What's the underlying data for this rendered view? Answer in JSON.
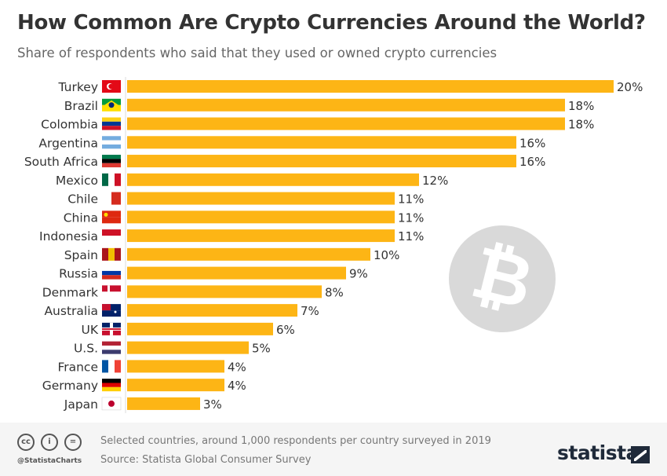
{
  "title": "How Common Are Crypto Currencies Around the World?",
  "subtitle": "Share of respondents who said that they used or owned crypto currencies",
  "chart_data": {
    "type": "bar",
    "orientation": "horizontal",
    "categories": [
      "Turkey",
      "Brazil",
      "Colombia",
      "Argentina",
      "South Africa",
      "Mexico",
      "Chile",
      "China",
      "Indonesia",
      "Spain",
      "Russia",
      "Denmark",
      "Australia",
      "UK",
      "U.S.",
      "France",
      "Germany",
      "Japan"
    ],
    "values": [
      20,
      18,
      18,
      16,
      16,
      12,
      11,
      11,
      11,
      10,
      9,
      8,
      7,
      6,
      5,
      4,
      4,
      3
    ],
    "data_labels": [
      "20%",
      "18%",
      "18%",
      "16%",
      "16%",
      "12%",
      "11%",
      "11%",
      "11%",
      "10%",
      "9%",
      "8%",
      "7%",
      "6%",
      "5%",
      "4%",
      "4%",
      "3%"
    ],
    "unit": "%",
    "xlim": [
      0,
      20
    ],
    "bar_color": "#fdb515",
    "grid": false,
    "title": "How Common Are Crypto Currencies Around the World?",
    "subtitle": "Share of respondents who said that they used or owned crypto currencies"
  },
  "flags": [
    [
      "#e30a17",
      "#e30a17"
    ],
    [
      "#009c3b",
      "#ffdf00"
    ],
    [
      "#fcd116",
      "#003893",
      "#ce1126"
    ],
    [
      "#74acdf",
      "#ffffff",
      "#74acdf"
    ],
    [
      "#007a4d",
      "#000000",
      "#de3831"
    ],
    [
      "#006847",
      "#ffffff",
      "#ce1126"
    ],
    [
      "#ffffff",
      "#d52b1e"
    ],
    [
      "#de2910",
      "#de2910"
    ],
    [
      "#ce1126",
      "#ffffff"
    ],
    [
      "#aa151b",
      "#f1bf00",
      "#aa151b"
    ],
    [
      "#ffffff",
      "#0039a6",
      "#d52b1e"
    ],
    [
      "#c8102e",
      "#ffffff"
    ],
    [
      "#012169",
      "#012169"
    ],
    [
      "#012169",
      "#c8102e"
    ],
    [
      "#b22234",
      "#ffffff",
      "#3c3b6e"
    ],
    [
      "#0055a4",
      "#ffffff",
      "#ef4135"
    ],
    [
      "#000000",
      "#dd0000",
      "#ffce00"
    ],
    [
      "#ffffff",
      "#ffffff"
    ]
  ],
  "watermark_icon": "bitcoin-icon",
  "footer": {
    "license_icons": [
      "cc-icon",
      "attribution-icon",
      "no-derivatives-icon"
    ],
    "license_glyphs": [
      "cc",
      "i",
      "="
    ],
    "handle": "@StatistaCharts",
    "note": "Selected countries, around 1,000 respondents per country surveyed in 2019",
    "source": "Source: Statista Global Consumer Survey",
    "logo": "statista"
  }
}
